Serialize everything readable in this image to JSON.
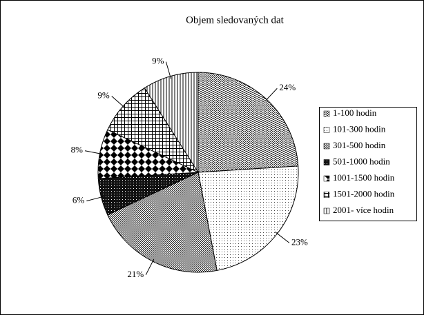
{
  "chart_data": {
    "type": "pie",
    "title": "Objem sledovaných dat",
    "categories": [
      "1-100 hodin",
      "101-300 hodin",
      "301-500 hodin",
      "501-1000 hodin",
      "1001-1500 hodin",
      "1501-2000 hodin",
      "2001- více hodin"
    ],
    "values": [
      24,
      23,
      21,
      6,
      8,
      9,
      9
    ],
    "value_labels": [
      "24%",
      "23%",
      "21%",
      "6%",
      "8%",
      "9%",
      "9%"
    ],
    "legend": "right"
  }
}
